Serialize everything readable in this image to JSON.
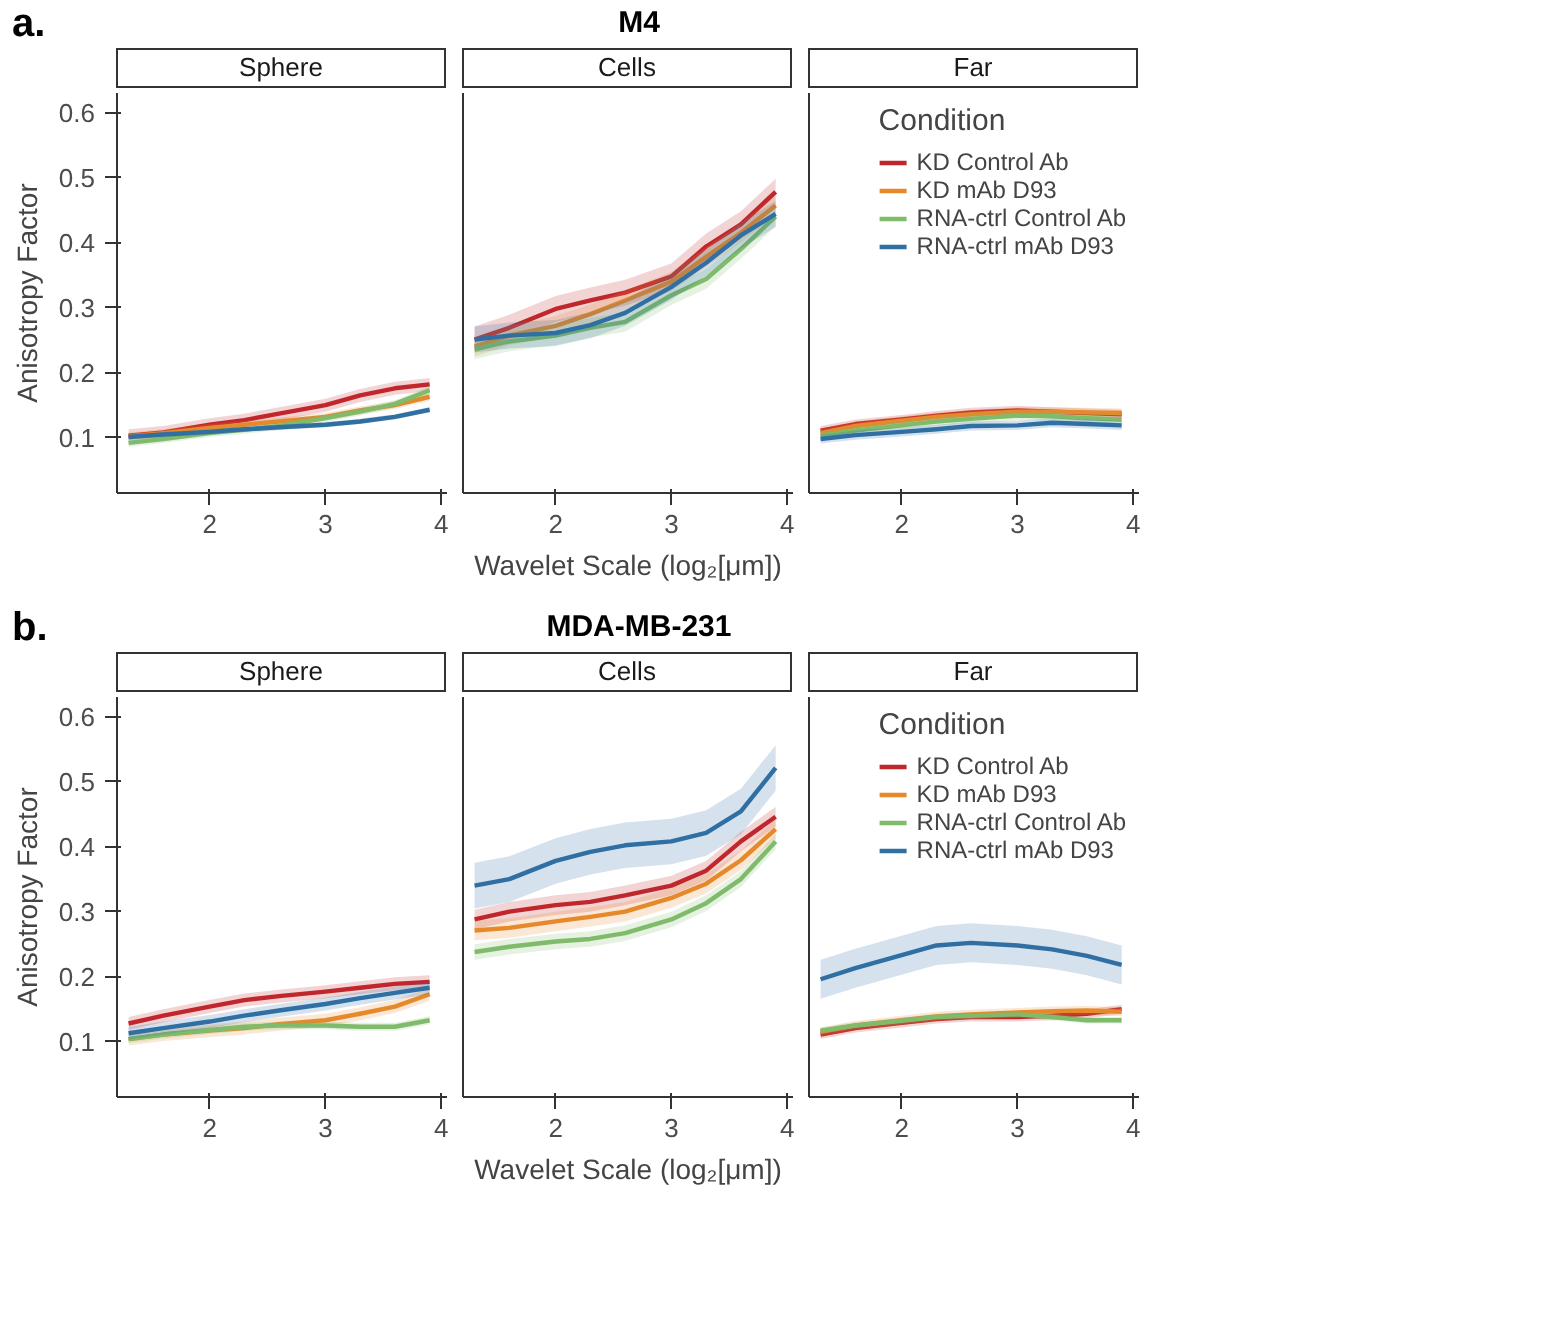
{
  "chart_data": [
    {
      "type": "line",
      "title": "Sphere",
      "annotations": [
        "a.",
        "M4"
      ],
      "ylabel": "Anisotropy Factor",
      "x": [
        1.3,
        1.6,
        2.0,
        2.3,
        2.6,
        3.0,
        3.3,
        3.6,
        3.9
      ],
      "xlim": [
        1.2,
        4.05
      ],
      "ylim": [
        0.015,
        0.63
      ],
      "xticks": [
        2,
        3,
        4
      ],
      "yticks": [
        0.1,
        0.2,
        0.3,
        0.4,
        0.5,
        0.6
      ],
      "grid": false,
      "legend": false,
      "series": [
        {
          "color": "#c0272d",
          "values": [
            0.103,
            0.108,
            0.12,
            0.127,
            0.137,
            0.15,
            0.165,
            0.176,
            0.182
          ],
          "lower": [
            0.093,
            0.098,
            0.11,
            0.117,
            0.127,
            0.14,
            0.155,
            0.166,
            0.172
          ],
          "upper": [
            0.113,
            0.118,
            0.13,
            0.137,
            0.147,
            0.16,
            0.175,
            0.186,
            0.192
          ]
        },
        {
          "color": "#e6892b",
          "values": [
            0.102,
            0.107,
            0.115,
            0.12,
            0.125,
            0.132,
            0.142,
            0.15,
            0.163
          ],
          "lower": [
            0.096,
            0.101,
            0.109,
            0.114,
            0.119,
            0.126,
            0.136,
            0.144,
            0.157
          ],
          "upper": [
            0.108,
            0.113,
            0.121,
            0.126,
            0.131,
            0.138,
            0.148,
            0.156,
            0.169
          ]
        },
        {
          "color": "#7fbb6a",
          "values": [
            0.092,
            0.098,
            0.107,
            0.112,
            0.118,
            0.13,
            0.14,
            0.152,
            0.173
          ],
          "lower": [
            0.086,
            0.092,
            0.101,
            0.106,
            0.112,
            0.124,
            0.134,
            0.146,
            0.167
          ],
          "upper": [
            0.098,
            0.104,
            0.113,
            0.118,
            0.124,
            0.136,
            0.146,
            0.158,
            0.179
          ]
        },
        {
          "color": "#2f6fa3",
          "values": [
            0.101,
            0.105,
            0.109,
            0.113,
            0.116,
            0.12,
            0.125,
            0.132,
            0.143
          ],
          "lower": [
            0.097,
            0.101,
            0.105,
            0.109,
            0.112,
            0.116,
            0.121,
            0.128,
            0.139
          ],
          "upper": [
            0.105,
            0.109,
            0.113,
            0.117,
            0.12,
            0.124,
            0.129,
            0.136,
            0.147
          ]
        }
      ]
    },
    {
      "type": "line",
      "title": "Cells",
      "xlabel": "Wavelet Scale (log₂[μm])",
      "x": [
        1.3,
        1.6,
        2.0,
        2.3,
        2.6,
        3.0,
        3.3,
        3.6,
        3.9
      ],
      "xlim": [
        1.2,
        4.05
      ],
      "ylim": [
        0.015,
        0.63
      ],
      "xticks": [
        2,
        3,
        4
      ],
      "yticks": [
        0.1,
        0.2,
        0.3,
        0.4,
        0.5,
        0.6
      ],
      "tick_labels": "x",
      "grid": false,
      "legend": false,
      "series": [
        {
          "color": "#c0272d",
          "values": [
            0.251,
            0.269,
            0.298,
            0.311,
            0.323,
            0.348,
            0.394,
            0.428,
            0.478
          ],
          "lower": [
            0.231,
            0.249,
            0.278,
            0.291,
            0.303,
            0.328,
            0.374,
            0.408,
            0.458
          ],
          "upper": [
            0.271,
            0.289,
            0.318,
            0.331,
            0.343,
            0.368,
            0.414,
            0.448,
            0.498
          ]
        },
        {
          "color": "#e6892b",
          "values": [
            0.24,
            0.257,
            0.272,
            0.29,
            0.311,
            0.34,
            0.378,
            0.415,
            0.457
          ],
          "lower": [
            0.225,
            0.242,
            0.257,
            0.275,
            0.296,
            0.325,
            0.363,
            0.4,
            0.442
          ],
          "upper": [
            0.255,
            0.272,
            0.287,
            0.305,
            0.326,
            0.355,
            0.393,
            0.43,
            0.472
          ]
        },
        {
          "color": "#7fbb6a",
          "values": [
            0.236,
            0.248,
            0.257,
            0.269,
            0.278,
            0.319,
            0.344,
            0.39,
            0.44
          ],
          "lower": [
            0.221,
            0.233,
            0.242,
            0.254,
            0.263,
            0.304,
            0.329,
            0.375,
            0.425
          ],
          "upper": [
            0.251,
            0.263,
            0.272,
            0.284,
            0.293,
            0.334,
            0.359,
            0.405,
            0.455
          ]
        },
        {
          "color": "#2f6fa3",
          "values": [
            0.251,
            0.257,
            0.261,
            0.273,
            0.292,
            0.332,
            0.369,
            0.411,
            0.444
          ],
          "lower": [
            0.231,
            0.237,
            0.241,
            0.253,
            0.272,
            0.312,
            0.349,
            0.391,
            0.424
          ],
          "upper": [
            0.271,
            0.277,
            0.281,
            0.293,
            0.312,
            0.352,
            0.389,
            0.431,
            0.464
          ]
        }
      ]
    },
    {
      "type": "line",
      "title": "Far",
      "legend_title": "Condition",
      "x": [
        1.3,
        1.6,
        2.0,
        2.3,
        2.6,
        3.0,
        3.3,
        3.6,
        3.9
      ],
      "xlim": [
        1.2,
        4.05
      ],
      "ylim": [
        0.015,
        0.63
      ],
      "xticks": [
        2,
        3,
        4
      ],
      "yticks": [
        0.1,
        0.2,
        0.3,
        0.4,
        0.5,
        0.6
      ],
      "tick_labels": "x",
      "grid": false,
      "legend": "top right",
      "series": [
        {
          "name": "KD Control Ab",
          "color": "#c0272d",
          "values": [
            0.111,
            0.121,
            0.128,
            0.134,
            0.139,
            0.142,
            0.14,
            0.138,
            0.136
          ],
          "lower": [
            0.104,
            0.114,
            0.121,
            0.127,
            0.132,
            0.135,
            0.133,
            0.131,
            0.129
          ],
          "upper": [
            0.118,
            0.128,
            0.135,
            0.141,
            0.146,
            0.149,
            0.147,
            0.145,
            0.143
          ]
        },
        {
          "name": "KD mAb D93",
          "color": "#e6892b",
          "values": [
            0.107,
            0.118,
            0.126,
            0.132,
            0.136,
            0.14,
            0.14,
            0.139,
            0.138
          ],
          "lower": [
            0.1,
            0.111,
            0.119,
            0.125,
            0.129,
            0.133,
            0.133,
            0.132,
            0.131
          ],
          "upper": [
            0.114,
            0.125,
            0.133,
            0.139,
            0.143,
            0.147,
            0.147,
            0.146,
            0.145
          ]
        },
        {
          "name": "RNA-ctrl Control Ab",
          "color": "#7fbb6a",
          "values": [
            0.103,
            0.111,
            0.119,
            0.125,
            0.129,
            0.134,
            0.133,
            0.13,
            0.128
          ],
          "lower": [
            0.096,
            0.104,
            0.112,
            0.118,
            0.122,
            0.127,
            0.126,
            0.123,
            0.121
          ],
          "upper": [
            0.11,
            0.118,
            0.126,
            0.132,
            0.136,
            0.141,
            0.14,
            0.137,
            0.135
          ]
        },
        {
          "name": "RNA-ctrl mAb D93",
          "color": "#2f6fa3",
          "values": [
            0.098,
            0.104,
            0.109,
            0.113,
            0.118,
            0.119,
            0.123,
            0.121,
            0.119
          ],
          "lower": [
            0.091,
            0.097,
            0.102,
            0.106,
            0.111,
            0.112,
            0.116,
            0.114,
            0.112
          ],
          "upper": [
            0.105,
            0.111,
            0.116,
            0.12,
            0.125,
            0.126,
            0.13,
            0.128,
            0.126
          ]
        }
      ]
    },
    {
      "type": "line",
      "title": "Sphere",
      "annotations": [
        "b.",
        "MDA-MB-231"
      ],
      "ylabel": "Anisotropy Factor",
      "x": [
        1.3,
        1.6,
        2.0,
        2.3,
        2.6,
        3.0,
        3.3,
        3.6,
        3.9
      ],
      "xlim": [
        1.2,
        4.05
      ],
      "ylim": [
        0.015,
        0.63
      ],
      "xticks": [
        2,
        3,
        4
      ],
      "yticks": [
        0.1,
        0.2,
        0.3,
        0.4,
        0.5,
        0.6
      ],
      "grid": false,
      "legend": false,
      "series": [
        {
          "color": "#c0272d",
          "values": [
            0.128,
            0.14,
            0.154,
            0.164,
            0.17,
            0.177,
            0.183,
            0.189,
            0.192
          ],
          "lower": [
            0.118,
            0.13,
            0.144,
            0.154,
            0.16,
            0.167,
            0.173,
            0.179,
            0.182
          ],
          "upper": [
            0.138,
            0.15,
            0.164,
            0.174,
            0.18,
            0.187,
            0.193,
            0.199,
            0.202
          ]
        },
        {
          "color": "#e6892b",
          "values": [
            0.104,
            0.111,
            0.117,
            0.121,
            0.127,
            0.133,
            0.143,
            0.154,
            0.173
          ],
          "lower": [
            0.094,
            0.101,
            0.107,
            0.111,
            0.117,
            0.123,
            0.133,
            0.144,
            0.163
          ],
          "upper": [
            0.114,
            0.121,
            0.127,
            0.131,
            0.137,
            0.143,
            0.153,
            0.164,
            0.183
          ]
        },
        {
          "color": "#7fbb6a",
          "values": [
            0.104,
            0.111,
            0.118,
            0.123,
            0.125,
            0.125,
            0.123,
            0.123,
            0.133
          ],
          "lower": [
            0.098,
            0.105,
            0.112,
            0.117,
            0.119,
            0.119,
            0.117,
            0.117,
            0.127
          ],
          "upper": [
            0.11,
            0.117,
            0.124,
            0.129,
            0.131,
            0.131,
            0.129,
            0.129,
            0.139
          ]
        },
        {
          "color": "#2f6fa3",
          "values": [
            0.113,
            0.121,
            0.131,
            0.14,
            0.148,
            0.158,
            0.167,
            0.175,
            0.183
          ],
          "lower": [
            0.103,
            0.111,
            0.121,
            0.13,
            0.138,
            0.148,
            0.157,
            0.165,
            0.173
          ],
          "upper": [
            0.123,
            0.131,
            0.141,
            0.15,
            0.158,
            0.168,
            0.177,
            0.185,
            0.193
          ]
        }
      ]
    },
    {
      "type": "line",
      "title": "Cells",
      "xlabel": "Wavelet Scale (log₂[μm])",
      "x": [
        1.3,
        1.6,
        2.0,
        2.3,
        2.6,
        3.0,
        3.3,
        3.6,
        3.9
      ],
      "xlim": [
        1.2,
        4.05
      ],
      "ylim": [
        0.015,
        0.63
      ],
      "xticks": [
        2,
        3,
        4
      ],
      "yticks": [
        0.1,
        0.2,
        0.3,
        0.4,
        0.5,
        0.6
      ],
      "tick_labels": "x",
      "grid": false,
      "legend": false,
      "series": [
        {
          "color": "#c0272d",
          "values": [
            0.288,
            0.3,
            0.31,
            0.315,
            0.325,
            0.34,
            0.363,
            0.408,
            0.446
          ],
          "lower": [
            0.273,
            0.285,
            0.295,
            0.3,
            0.31,
            0.325,
            0.348,
            0.393,
            0.431
          ],
          "upper": [
            0.303,
            0.315,
            0.325,
            0.33,
            0.34,
            0.355,
            0.378,
            0.423,
            0.461
          ]
        },
        {
          "color": "#e6892b",
          "values": [
            0.271,
            0.275,
            0.285,
            0.292,
            0.3,
            0.321,
            0.343,
            0.379,
            0.427
          ],
          "lower": [
            0.256,
            0.26,
            0.27,
            0.277,
            0.285,
            0.306,
            0.328,
            0.364,
            0.412
          ],
          "upper": [
            0.286,
            0.29,
            0.3,
            0.307,
            0.315,
            0.336,
            0.358,
            0.394,
            0.442
          ]
        },
        {
          "color": "#7fbb6a",
          "values": [
            0.238,
            0.246,
            0.254,
            0.258,
            0.267,
            0.288,
            0.313,
            0.35,
            0.408
          ],
          "lower": [
            0.226,
            0.234,
            0.242,
            0.246,
            0.255,
            0.276,
            0.301,
            0.338,
            0.396
          ],
          "upper": [
            0.25,
            0.258,
            0.266,
            0.27,
            0.279,
            0.3,
            0.325,
            0.362,
            0.42
          ]
        },
        {
          "color": "#2f6fa3",
          "values": [
            0.34,
            0.35,
            0.378,
            0.392,
            0.402,
            0.408,
            0.421,
            0.454,
            0.521
          ],
          "lower": [
            0.305,
            0.315,
            0.343,
            0.357,
            0.367,
            0.373,
            0.386,
            0.419,
            0.486
          ],
          "upper": [
            0.375,
            0.385,
            0.413,
            0.427,
            0.437,
            0.443,
            0.456,
            0.489,
            0.556
          ]
        }
      ]
    },
    {
      "type": "line",
      "title": "Far",
      "legend_title": "Condition",
      "x": [
        1.3,
        1.6,
        2.0,
        2.3,
        2.6,
        3.0,
        3.3,
        3.6,
        3.9
      ],
      "xlim": [
        1.2,
        4.05
      ],
      "ylim": [
        0.015,
        0.63
      ],
      "xticks": [
        2,
        3,
        4
      ],
      "yticks": [
        0.1,
        0.2,
        0.3,
        0.4,
        0.5,
        0.6
      ],
      "tick_labels": "x",
      "grid": false,
      "legend": "top right",
      "series": [
        {
          "name": "KD Control Ab",
          "color": "#c0272d",
          "values": [
            0.111,
            0.121,
            0.129,
            0.135,
            0.138,
            0.138,
            0.14,
            0.143,
            0.15
          ],
          "lower": [
            0.104,
            0.114,
            0.122,
            0.128,
            0.131,
            0.131,
            0.133,
            0.136,
            0.143
          ],
          "upper": [
            0.118,
            0.128,
            0.136,
            0.142,
            0.145,
            0.145,
            0.147,
            0.15,
            0.157
          ]
        },
        {
          "name": "KD mAb D93",
          "color": "#e6892b",
          "values": [
            0.115,
            0.125,
            0.133,
            0.139,
            0.142,
            0.145,
            0.147,
            0.148,
            0.146
          ],
          "lower": [
            0.108,
            0.118,
            0.126,
            0.132,
            0.135,
            0.138,
            0.14,
            0.141,
            0.139
          ],
          "upper": [
            0.122,
            0.132,
            0.14,
            0.146,
            0.149,
            0.152,
            0.154,
            0.155,
            0.153
          ]
        },
        {
          "name": "RNA-ctrl Control Ab",
          "color": "#7fbb6a",
          "values": [
            0.117,
            0.125,
            0.132,
            0.138,
            0.14,
            0.142,
            0.138,
            0.133,
            0.133
          ],
          "lower": [
            0.112,
            0.12,
            0.127,
            0.133,
            0.135,
            0.137,
            0.133,
            0.128,
            0.128
          ],
          "upper": [
            0.122,
            0.13,
            0.137,
            0.143,
            0.145,
            0.147,
            0.143,
            0.138,
            0.138
          ]
        },
        {
          "name": "RNA-ctrl mAb D93",
          "color": "#2f6fa3",
          "values": [
            0.196,
            0.213,
            0.233,
            0.248,
            0.252,
            0.248,
            0.242,
            0.232,
            0.218
          ],
          "lower": [
            0.166,
            0.183,
            0.203,
            0.218,
            0.222,
            0.218,
            0.212,
            0.202,
            0.188
          ],
          "upper": [
            0.226,
            0.243,
            0.263,
            0.278,
            0.282,
            0.278,
            0.272,
            0.262,
            0.248
          ]
        }
      ]
    }
  ]
}
